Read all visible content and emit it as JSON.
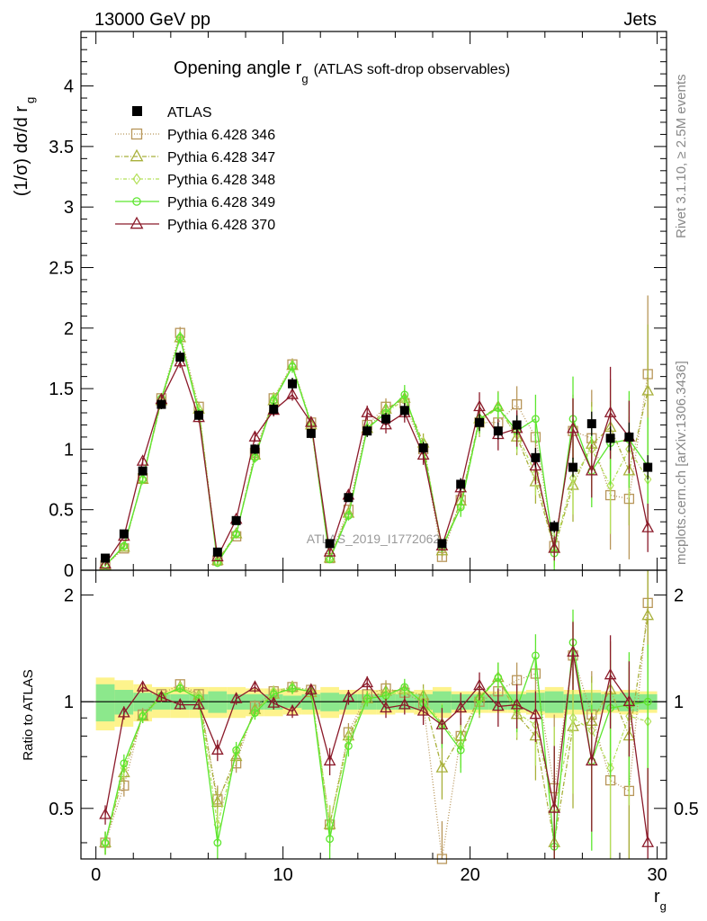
{
  "header": {
    "left": "13000 GeV pp",
    "right": "Jets"
  },
  "side_text": {
    "rivet": "Rivet 3.1.10, ≥ 2.5M events",
    "mcplots": "mcplots.cern.ch [arXiv:1306.3436]"
  },
  "watermark": "ATLAS_2019_I1772062",
  "chart_data": [
    {
      "type": "line",
      "title": "Opening angle r",
      "title_sub": "g",
      "title_note": "(ATLAS soft-drop observables)",
      "ylabel": "(1/σ) dσ/d r",
      "ylabel_sub": "g",
      "xlim": [
        -0.8,
        30.5
      ],
      "ylim": [
        0,
        4.45
      ],
      "yticks": [
        0,
        0.5,
        1,
        1.5,
        2,
        2.5,
        3,
        3.5,
        4
      ],
      "ytick_labels": [
        "0",
        "0.5",
        "1",
        "1.5",
        "2",
        "2.5",
        "3",
        "3.5",
        "4"
      ],
      "legend": "top-left",
      "x": [
        0.5,
        1.5,
        2.5,
        3.5,
        4.5,
        5.5,
        6.5,
        7.5,
        8.5,
        9.5,
        10.5,
        11.5,
        12.5,
        13.5,
        14.5,
        15.5,
        16.5,
        17.5,
        18.5,
        19.5,
        20.5,
        21.5,
        22.5,
        23.5,
        24.5,
        25.5,
        26.5,
        27.5,
        28.5,
        29.5
      ],
      "data": {
        "name": "ATLAS",
        "values": [
          0.1,
          0.3,
          0.82,
          1.37,
          1.76,
          1.28,
          0.15,
          0.41,
          1.0,
          1.33,
          1.54,
          1.13,
          0.22,
          0.6,
          1.15,
          1.25,
          1.32,
          1.01,
          0.22,
          0.71,
          1.22,
          1.15,
          1.2,
          0.93,
          0.36,
          0.85,
          1.21,
          1.09,
          1.1,
          0.85
        ],
        "errors": [
          0.01,
          0.02,
          0.03,
          0.04,
          0.05,
          0.04,
          0.01,
          0.02,
          0.04,
          0.05,
          0.05,
          0.04,
          0.02,
          0.03,
          0.05,
          0.05,
          0.06,
          0.05,
          0.02,
          0.05,
          0.07,
          0.07,
          0.08,
          0.08,
          0.05,
          0.08,
          0.1,
          0.1,
          0.12,
          0.1
        ]
      },
      "series": [
        {
          "name": "Pythia 6.428 346",
          "color": "#b8965a",
          "marker": "square",
          "dash": "1,2",
          "values": [
            0.04,
            0.18,
            0.76,
            1.42,
            1.96,
            1.35,
            0.08,
            0.28,
            0.97,
            1.42,
            1.7,
            1.22,
            0.1,
            0.5,
            1.2,
            1.35,
            1.38,
            1.0,
            0.11,
            0.58,
            1.22,
            1.22,
            1.37,
            1.1,
            0.2,
            1.15,
            1.09,
            0.62,
            0.59,
            1.62
          ],
          "errors": [
            0.01,
            0.02,
            0.03,
            0.04,
            0.05,
            0.04,
            0.01,
            0.02,
            0.04,
            0.05,
            0.05,
            0.05,
            0.02,
            0.04,
            0.06,
            0.07,
            0.08,
            0.08,
            0.03,
            0.08,
            0.12,
            0.13,
            0.15,
            0.18,
            0.15,
            0.3,
            0.4,
            0.45,
            0.5,
            0.65
          ]
        },
        {
          "name": "Pythia 6.428 347",
          "color": "#a8b03a",
          "marker": "triangle",
          "dash": "5,2,1,2",
          "values": [
            0.04,
            0.19,
            0.75,
            1.4,
            1.92,
            1.33,
            0.08,
            0.3,
            0.95,
            1.4,
            1.69,
            1.2,
            0.1,
            0.47,
            1.17,
            1.33,
            1.42,
            1.05,
            0.16,
            0.57,
            1.25,
            1.35,
            1.1,
            0.73,
            0.18,
            0.7,
            1.04,
            1.18,
            0.82,
            1.48
          ],
          "errors": [
            0.01,
            0.02,
            0.03,
            0.04,
            0.05,
            0.04,
            0.01,
            0.02,
            0.04,
            0.05,
            0.05,
            0.05,
            0.02,
            0.04,
            0.06,
            0.07,
            0.08,
            0.08,
            0.04,
            0.08,
            0.12,
            0.13,
            0.15,
            0.18,
            0.15,
            0.3,
            0.35,
            0.4,
            0.45,
            0.55
          ]
        },
        {
          "name": "Pythia 6.428 348",
          "color": "#b4e05a",
          "marker": "diamond",
          "dash": "4,2,1,2",
          "values": [
            0.04,
            0.2,
            0.75,
            1.4,
            1.93,
            1.33,
            0.07,
            0.3,
            0.93,
            1.42,
            1.69,
            1.22,
            0.1,
            0.46,
            1.17,
            1.3,
            1.41,
            1.02,
            0.2,
            0.53,
            1.23,
            1.34,
            1.12,
            0.8,
            0.18,
            0.76,
            1.0,
            0.7,
            1.0,
            0.75
          ],
          "errors": [
            0.01,
            0.02,
            0.03,
            0.04,
            0.05,
            0.04,
            0.01,
            0.02,
            0.04,
            0.05,
            0.05,
            0.05,
            0.02,
            0.04,
            0.06,
            0.07,
            0.08,
            0.08,
            0.04,
            0.08,
            0.12,
            0.13,
            0.15,
            0.18,
            0.15,
            0.3,
            0.35,
            0.4,
            0.4,
            0.45
          ]
        },
        {
          "name": "Pythia 6.428 349",
          "color": "#5ce62e",
          "marker": "circle",
          "dash": "none",
          "values": [
            0.04,
            0.2,
            0.75,
            1.42,
            1.92,
            1.3,
            0.06,
            0.3,
            0.93,
            1.4,
            1.68,
            1.21,
            0.09,
            0.45,
            1.17,
            1.3,
            1.45,
            1.0,
            0.19,
            0.52,
            1.25,
            1.34,
            1.15,
            1.25,
            0.14,
            1.25,
            0.82,
            1.05,
            1.08,
            0.86
          ],
          "errors": [
            0.01,
            0.02,
            0.03,
            0.04,
            0.05,
            0.04,
            0.01,
            0.02,
            0.04,
            0.05,
            0.05,
            0.05,
            0.02,
            0.04,
            0.06,
            0.07,
            0.08,
            0.08,
            0.04,
            0.08,
            0.12,
            0.13,
            0.15,
            0.2,
            0.15,
            0.35,
            0.3,
            0.35,
            0.4,
            0.4
          ]
        },
        {
          "name": "Pythia 6.428 370",
          "color": "#8b1a2a",
          "marker": "triangle",
          "dash": "none",
          "values": [
            0.05,
            0.28,
            0.9,
            1.41,
            1.72,
            1.26,
            0.11,
            0.42,
            1.1,
            1.32,
            1.45,
            1.22,
            0.15,
            0.62,
            1.3,
            1.2,
            1.3,
            0.95,
            0.2,
            0.68,
            1.35,
            1.12,
            1.17,
            0.86,
            0.18,
            1.17,
            0.82,
            1.3,
            1.1,
            0.35
          ],
          "errors": [
            0.01,
            0.02,
            0.03,
            0.04,
            0.05,
            0.04,
            0.01,
            0.02,
            0.04,
            0.05,
            0.05,
            0.05,
            0.02,
            0.04,
            0.06,
            0.07,
            0.08,
            0.08,
            0.04,
            0.08,
            0.12,
            0.13,
            0.15,
            0.15,
            0.1,
            0.25,
            0.22,
            0.38,
            0.3,
            0.2
          ]
        }
      ]
    },
    {
      "type": "line",
      "xlabel": "r",
      "xlabel_sub": "g",
      "ylabel": "Ratio to ATLAS",
      "xlim": [
        -0.8,
        30.5
      ],
      "ylim": [
        0.36,
        2.35
      ],
      "log_y": true,
      "xticks": [
        0,
        10,
        20,
        30
      ],
      "xtick_labels": [
        "0",
        "10",
        "20",
        "30"
      ],
      "yticks": [
        0.5,
        1,
        2
      ],
      "ytick_labels": [
        "0.5",
        "1",
        "2"
      ],
      "reference_line": 1,
      "band_inner": [
        0.12,
        0.08,
        0.06,
        0.05,
        0.05,
        0.05,
        0.07,
        0.05,
        0.05,
        0.05,
        0.04,
        0.05,
        0.06,
        0.05,
        0.05,
        0.05,
        0.05,
        0.05,
        0.07,
        0.05,
        0.05,
        0.05,
        0.05,
        0.06,
        0.07,
        0.05,
        0.06,
        0.05,
        0.06,
        0.05
      ],
      "band_outer": [
        0.17,
        0.15,
        0.12,
        0.1,
        0.1,
        0.1,
        0.1,
        0.1,
        0.09,
        0.09,
        0.08,
        0.08,
        0.1,
        0.08,
        0.08,
        0.08,
        0.07,
        0.08,
        0.1,
        0.07,
        0.07,
        0.07,
        0.07,
        0.08,
        0.1,
        0.08,
        0.08,
        0.07,
        0.08,
        0.07
      ],
      "series": [
        {
          "name": "Pythia 6.428 346",
          "values": [
            0.4,
            0.58,
            0.92,
            1.05,
            1.12,
            1.05,
            0.53,
            0.67,
            0.97,
            1.07,
            1.1,
            1.08,
            0.45,
            0.82,
            1.05,
            1.09,
            1.06,
            0.99,
            0.36,
            0.8,
            1.0,
            1.07,
            1.15,
            1.2,
            0.57,
            1.35,
            0.92,
            0.6,
            0.56,
            1.9
          ],
          "errors": [
            0.03,
            0.04,
            0.04,
            0.03,
            0.03,
            0.03,
            0.05,
            0.04,
            0.04,
            0.04,
            0.04,
            0.04,
            0.06,
            0.05,
            0.05,
            0.06,
            0.06,
            0.08,
            0.1,
            0.1,
            0.1,
            0.12,
            0.14,
            0.2,
            0.35,
            0.35,
            0.3,
            0.4,
            0.45,
            0.7
          ]
        },
        {
          "name": "Pythia 6.428 347",
          "values": [
            0.4,
            0.63,
            0.91,
            1.03,
            1.1,
            1.04,
            0.52,
            0.7,
            0.95,
            1.05,
            1.1,
            1.06,
            0.45,
            0.8,
            1.02,
            1.07,
            1.08,
            1.04,
            0.65,
            0.8,
            1.03,
            1.17,
            0.92,
            0.8,
            0.4,
            0.85,
            0.88,
            1.08,
            0.8,
            1.75
          ],
          "errors": [
            0.03,
            0.04,
            0.04,
            0.03,
            0.03,
            0.03,
            0.05,
            0.04,
            0.04,
            0.04,
            0.04,
            0.04,
            0.06,
            0.05,
            0.05,
            0.06,
            0.06,
            0.08,
            0.12,
            0.1,
            0.1,
            0.12,
            0.14,
            0.2,
            0.35,
            0.35,
            0.3,
            0.4,
            0.45,
            0.6
          ]
        },
        {
          "name": "Pythia 6.428 348",
          "values": [
            0.4,
            0.65,
            0.91,
            1.03,
            1.1,
            1.04,
            0.45,
            0.72,
            0.93,
            1.07,
            1.1,
            1.08,
            0.45,
            0.78,
            1.02,
            1.04,
            1.07,
            1.01,
            0.87,
            0.75,
            1.01,
            1.17,
            0.93,
            0.86,
            0.5,
            0.9,
            0.83,
            0.65,
            0.91,
            0.88
          ],
          "errors": [
            0.03,
            0.04,
            0.04,
            0.03,
            0.03,
            0.03,
            0.05,
            0.04,
            0.04,
            0.04,
            0.04,
            0.04,
            0.06,
            0.05,
            0.05,
            0.06,
            0.06,
            0.08,
            0.12,
            0.1,
            0.1,
            0.12,
            0.14,
            0.2,
            0.35,
            0.35,
            0.3,
            0.35,
            0.4,
            0.45
          ]
        },
        {
          "name": "Pythia 6.428 349",
          "values": [
            0.4,
            0.67,
            0.91,
            1.04,
            1.09,
            1.02,
            0.4,
            0.73,
            0.93,
            1.05,
            1.09,
            1.07,
            0.41,
            0.75,
            1.02,
            1.04,
            1.1,
            0.99,
            0.86,
            0.73,
            1.02,
            1.17,
            0.96,
            1.35,
            0.39,
            1.47,
            0.68,
            0.96,
            0.98,
            1.0
          ],
          "errors": [
            0.03,
            0.04,
            0.04,
            0.03,
            0.03,
            0.03,
            0.05,
            0.04,
            0.04,
            0.04,
            0.04,
            0.04,
            0.06,
            0.05,
            0.05,
            0.06,
            0.06,
            0.08,
            0.12,
            0.1,
            0.1,
            0.12,
            0.14,
            0.2,
            0.35,
            0.35,
            0.3,
            0.35,
            0.4,
            0.45
          ]
        },
        {
          "name": "Pythia 6.428 370",
          "values": [
            0.48,
            0.93,
            1.1,
            1.03,
            0.98,
            0.98,
            0.73,
            1.02,
            1.1,
            0.99,
            0.94,
            1.08,
            0.68,
            1.03,
            1.13,
            0.96,
            0.98,
            0.94,
            0.86,
            0.96,
            1.11,
            0.97,
            0.98,
            0.92,
            0.5,
            1.38,
            0.68,
            1.19,
            1.0,
            0.4
          ],
          "errors": [
            0.03,
            0.04,
            0.04,
            0.03,
            0.03,
            0.03,
            0.05,
            0.04,
            0.04,
            0.04,
            0.04,
            0.04,
            0.06,
            0.05,
            0.05,
            0.06,
            0.06,
            0.08,
            0.1,
            0.1,
            0.1,
            0.12,
            0.14,
            0.15,
            0.25,
            0.3,
            0.25,
            0.35,
            0.3,
            0.25
          ]
        }
      ]
    }
  ]
}
